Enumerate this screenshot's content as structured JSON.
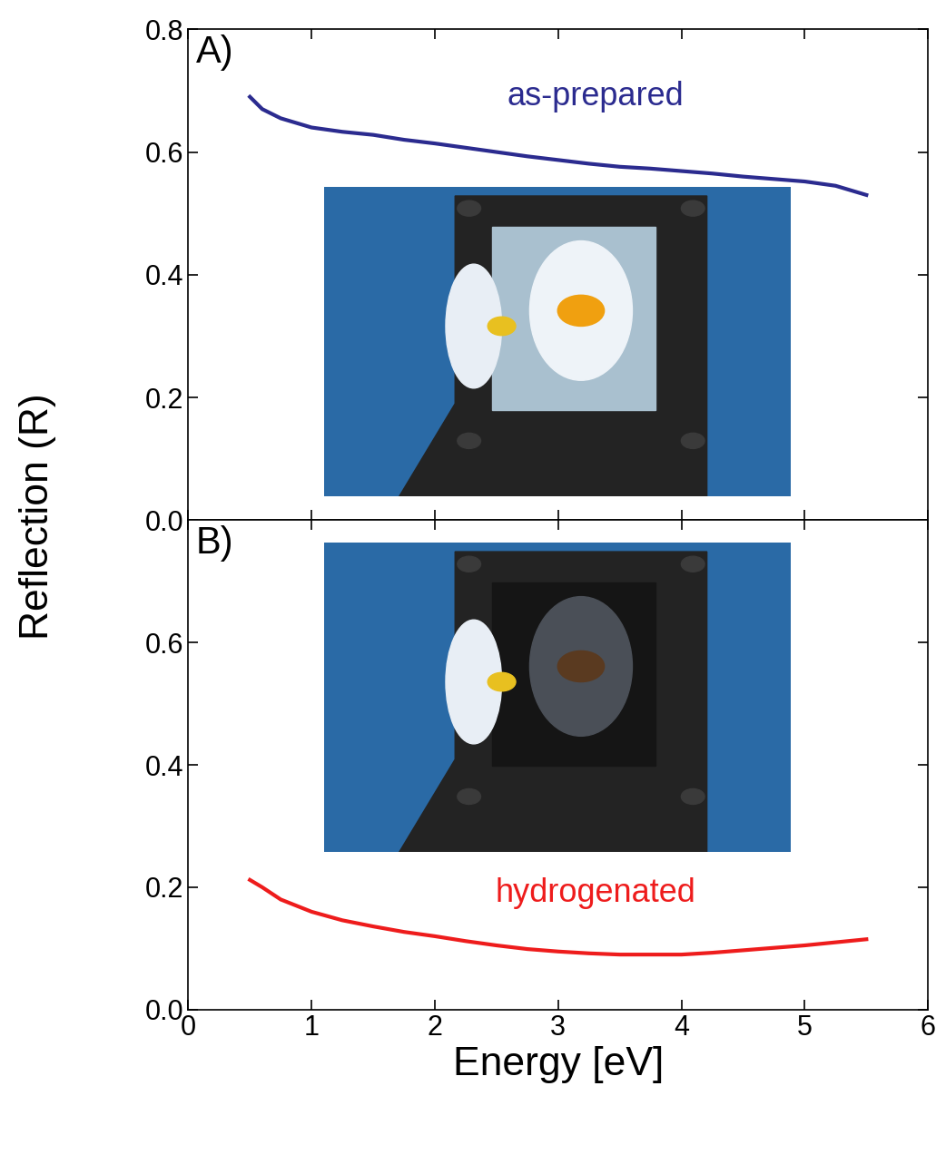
{
  "ylabel": "Reflection (R)",
  "chart_data": [
    {
      "type": "line",
      "title": "A)",
      "tick_labels": "y",
      "xlim": [
        0,
        6
      ],
      "xticks": [
        0,
        1,
        2,
        3,
        4,
        5,
        6
      ],
      "ylim": [
        0.0,
        0.8
      ],
      "yticks": [
        0.0,
        0.2,
        0.4,
        0.6,
        0.8
      ],
      "series": [
        {
          "name": "as-prepared",
          "color": "#2b2b8f",
          "x": [
            0.5,
            0.6,
            0.75,
            1.0,
            1.25,
            1.5,
            1.75,
            2.0,
            2.25,
            2.5,
            2.75,
            3.0,
            3.25,
            3.5,
            3.75,
            4.0,
            4.25,
            4.5,
            4.75,
            5.0,
            5.25,
            5.5
          ],
          "values": [
            0.69,
            0.67,
            0.655,
            0.64,
            0.633,
            0.628,
            0.62,
            0.614,
            0.607,
            0.6,
            0.593,
            0.587,
            0.581,
            0.576,
            0.573,
            0.569,
            0.565,
            0.56,
            0.556,
            0.552,
            0.545,
            0.53
          ]
        }
      ]
    },
    {
      "type": "line",
      "title": "B)",
      "x_label": "Energy [eV]",
      "xlim": [
        0,
        6
      ],
      "xticks": [
        0,
        1,
        2,
        3,
        4,
        5,
        6
      ],
      "ylim": [
        0.0,
        0.8
      ],
      "yticks": [
        0.0,
        0.2,
        0.4,
        0.6
      ],
      "series": [
        {
          "name": "hydrogenated",
          "color": "#ee1c1c",
          "x": [
            0.5,
            0.6,
            0.75,
            1.0,
            1.25,
            1.5,
            1.75,
            2.0,
            2.25,
            2.5,
            2.75,
            3.0,
            3.25,
            3.5,
            3.75,
            4.0,
            4.25,
            4.5,
            4.75,
            5.0,
            5.25,
            5.5
          ],
          "values": [
            0.212,
            0.2,
            0.18,
            0.16,
            0.146,
            0.136,
            0.127,
            0.12,
            0.112,
            0.105,
            0.099,
            0.095,
            0.092,
            0.09,
            0.09,
            0.09,
            0.093,
            0.097,
            0.101,
            0.105,
            0.11,
            0.115
          ]
        }
      ]
    }
  ]
}
